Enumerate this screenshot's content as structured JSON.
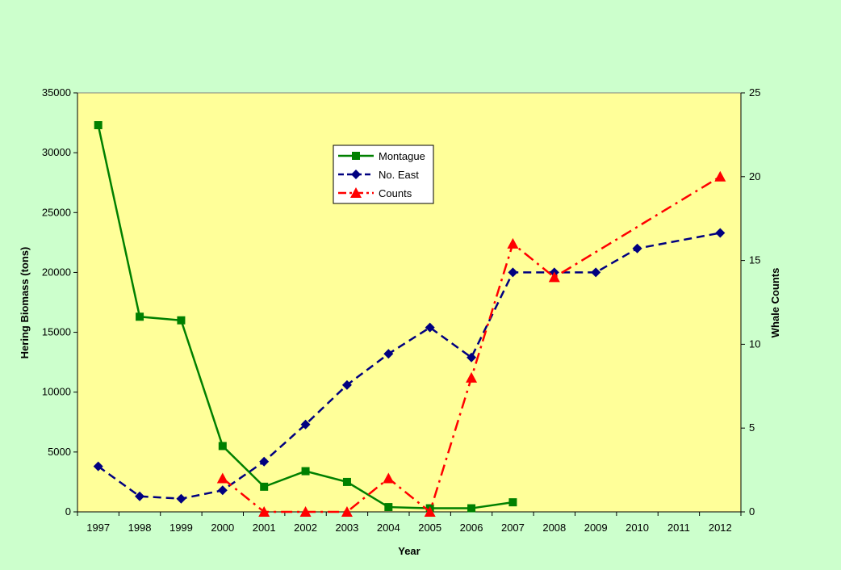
{
  "colors": {
    "background": "#ccffcc",
    "plot_area": "#ffff99",
    "montague": "#008000",
    "no_east": "#000080",
    "counts": "#ff0000"
  },
  "chart_data": {
    "type": "line",
    "title": "",
    "xlabel": "Year",
    "ylabel": "Hering Biomass (tons)",
    "y2label": "Whale Counts",
    "categories": [
      "1997",
      "1998",
      "1999",
      "2000",
      "2001",
      "2002",
      "2003",
      "2004",
      "2005",
      "2006",
      "2007",
      "2008",
      "2009",
      "2010",
      "2011",
      "2012"
    ],
    "ylim": [
      0,
      35000
    ],
    "yticks": [
      0,
      5000,
      10000,
      15000,
      20000,
      25000,
      30000,
      35000
    ],
    "y2lim": [
      0,
      25
    ],
    "y2ticks": [
      0,
      5,
      10,
      15,
      20,
      25
    ],
    "grid": false,
    "legend_position": "upper-center",
    "series": [
      {
        "name": "Montague",
        "axis": "left",
        "style": "solid",
        "marker": "square",
        "color": "#008000",
        "values": [
          32300,
          16300,
          16000,
          5500,
          2100,
          3400,
          2500,
          400,
          300,
          300,
          800,
          null,
          null,
          null,
          null,
          null
        ]
      },
      {
        "name": "No. East",
        "axis": "left",
        "style": "dashed",
        "marker": "diamond",
        "color": "#000080",
        "values": [
          3800,
          1300,
          1100,
          1800,
          4200,
          7300,
          10600,
          13200,
          15400,
          12900,
          20000,
          20000,
          20000,
          22000,
          null,
          23300
        ]
      },
      {
        "name": "Counts",
        "axis": "right",
        "style": "dashdot",
        "marker": "triangle",
        "color": "#ff0000",
        "values": [
          null,
          null,
          null,
          2,
          0,
          0,
          0,
          2,
          0,
          8,
          16,
          14,
          null,
          null,
          null,
          20
        ]
      }
    ]
  }
}
